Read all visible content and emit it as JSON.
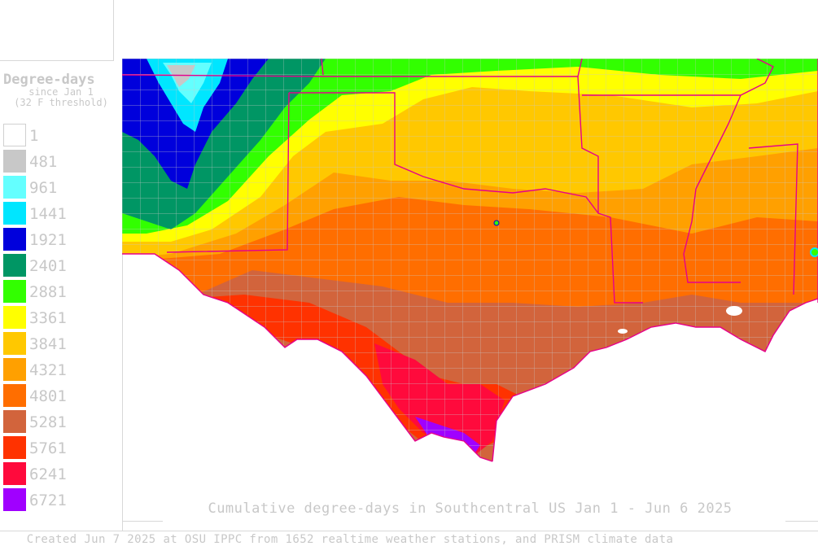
{
  "legend": {
    "title": "Degree-days",
    "subtitle_line1": "since Jan 1",
    "subtitle_line2": "(32 F threshold)",
    "items": [
      {
        "label": "1",
        "color": "#ffffff"
      },
      {
        "label": "481",
        "color": "#c8c8c8"
      },
      {
        "label": "961",
        "color": "#64ffff"
      },
      {
        "label": "1441",
        "color": "#00e6ff"
      },
      {
        "label": "1921",
        "color": "#0000dc"
      },
      {
        "label": "2401",
        "color": "#009664"
      },
      {
        "label": "2881",
        "color": "#32ff00"
      },
      {
        "label": "3361",
        "color": "#ffff00"
      },
      {
        "label": "3841",
        "color": "#ffc800"
      },
      {
        "label": "4321",
        "color": "#ffa000"
      },
      {
        "label": "4801",
        "color": "#ff6e00"
      },
      {
        "label": "5281",
        "color": "#d2643c"
      },
      {
        "label": "5761",
        "color": "#ff3200"
      },
      {
        "label": "6241",
        "color": "#ff0a3c"
      },
      {
        "label": "6721",
        "color": "#a000ff"
      }
    ]
  },
  "map": {
    "title": "Cumulative degree-days in Southcentral US Jan 1 - Jun 6 2025",
    "state_border_color": "#e6008c",
    "county_line_color": "#c8c8c8"
  },
  "footer": {
    "credit": "Created Jun 7 2025 at OSU IPPC from 1652 realtime weather stations, and PRISM climate data"
  }
}
